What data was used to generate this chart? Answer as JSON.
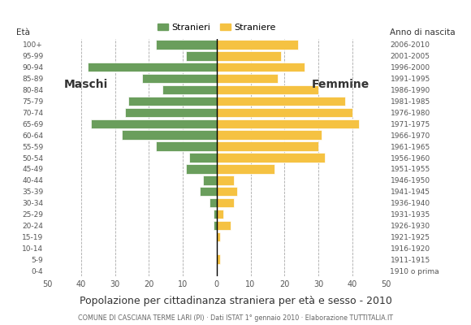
{
  "age_labels": [
    "0-4",
    "5-9",
    "10-14",
    "15-19",
    "20-24",
    "25-29",
    "30-34",
    "35-39",
    "40-44",
    "45-49",
    "50-54",
    "55-59",
    "60-64",
    "65-69",
    "70-74",
    "75-79",
    "80-84",
    "85-89",
    "90-94",
    "95-99",
    "100+"
  ],
  "birth_years": [
    "2006-2010",
    "2001-2005",
    "1996-2000",
    "1991-1995",
    "1986-1990",
    "1981-1985",
    "1976-1980",
    "1971-1975",
    "1966-1970",
    "1961-1965",
    "1956-1960",
    "1951-1955",
    "1946-1950",
    "1941-1945",
    "1936-1940",
    "1931-1935",
    "1926-1930",
    "1921-1925",
    "1916-1920",
    "1911-1915",
    "1910 o prima"
  ],
  "maschi": [
    18,
    9,
    38,
    22,
    16,
    26,
    27,
    37,
    28,
    18,
    8,
    9,
    4,
    5,
    2,
    1,
    1,
    0,
    0,
    0,
    0
  ],
  "femmine": [
    24,
    19,
    26,
    18,
    30,
    38,
    40,
    42,
    31,
    30,
    32,
    17,
    5,
    6,
    5,
    2,
    4,
    1,
    0,
    1,
    0
  ],
  "male_color": "#6a9e5c",
  "female_color": "#f5c242",
  "background_color": "#ffffff",
  "grid_color": "#aaaaaa",
  "title": "Popolazione per cittadinanza straniera per età e sesso - 2010",
  "subtitle": "COMUNE DI CASCIANA TERME LARI (PI) · Dati ISTAT 1° gennaio 2010 · Elaborazione TUTTITALIA.IT",
  "ylabel_left": "Età",
  "xlim": 50,
  "legend_male": "Stranieri",
  "legend_female": "Straniere",
  "label_maschi": "Maschi",
  "label_femmine": "Femmine",
  "label_anno": "Anno di nascita"
}
